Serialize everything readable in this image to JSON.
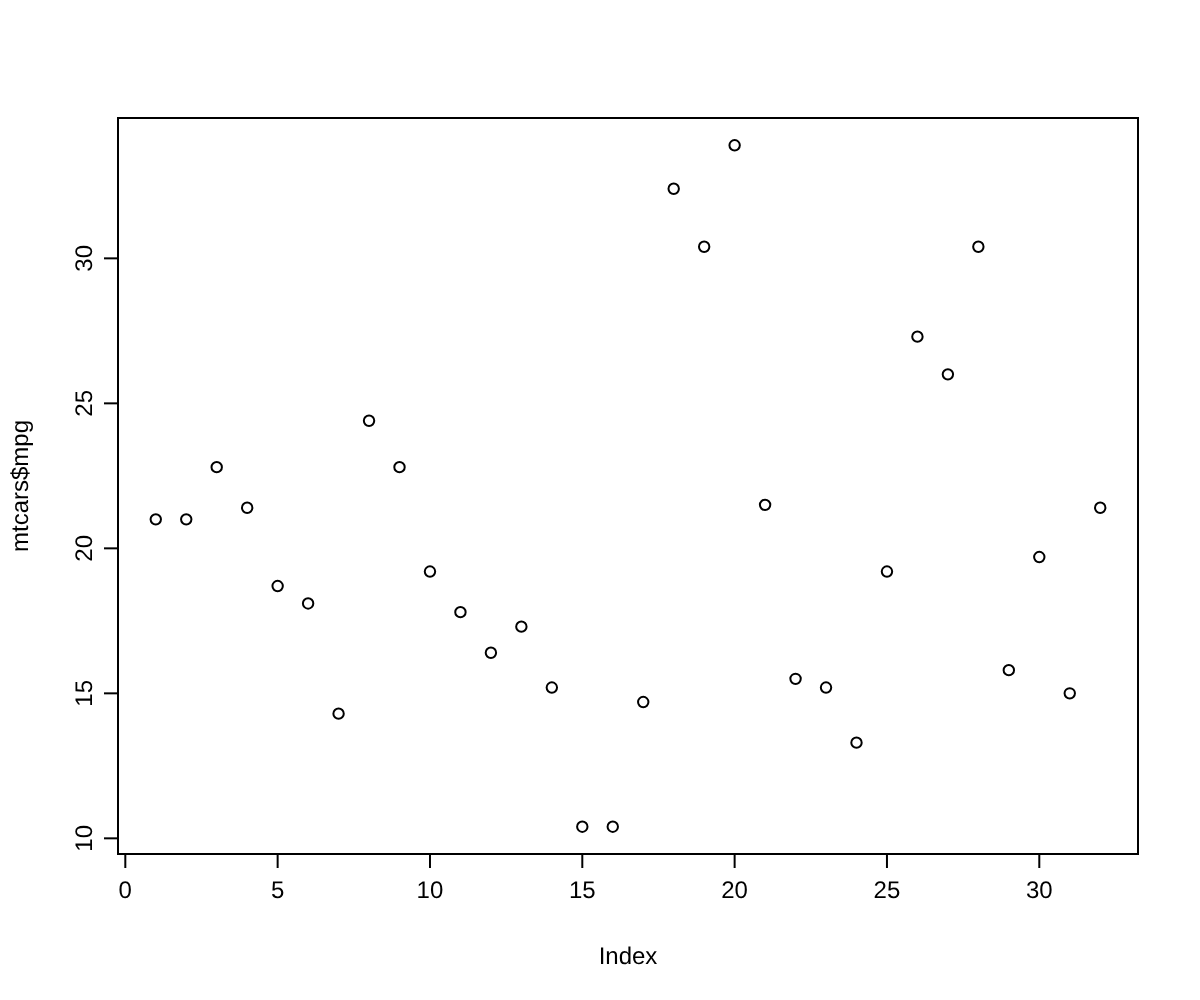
{
  "chart_data": {
    "type": "scatter",
    "xlabel": "Index",
    "ylabel": "mtcars$mpg",
    "x": [
      1,
      2,
      3,
      4,
      5,
      6,
      7,
      8,
      9,
      10,
      11,
      12,
      13,
      14,
      15,
      16,
      17,
      18,
      19,
      20,
      21,
      22,
      23,
      24,
      25,
      26,
      27,
      28,
      29,
      30,
      31,
      32
    ],
    "values": [
      21.0,
      21.0,
      22.8,
      21.4,
      18.7,
      18.1,
      14.3,
      24.4,
      22.8,
      19.2,
      17.8,
      16.4,
      17.3,
      15.2,
      10.4,
      10.4,
      14.7,
      32.4,
      30.4,
      33.9,
      21.5,
      15.5,
      15.2,
      13.3,
      19.2,
      27.3,
      26.0,
      30.4,
      15.8,
      19.7,
      15.0,
      21.4
    ],
    "color": "#000000",
    "marker": "circle",
    "xlim": [
      -0.24,
      33.24
    ],
    "ylim": [
      9.46,
      34.84
    ],
    "xticks": [
      0,
      5,
      10,
      15,
      20,
      25,
      30
    ],
    "yticks": [
      10,
      15,
      20,
      25,
      30
    ]
  }
}
